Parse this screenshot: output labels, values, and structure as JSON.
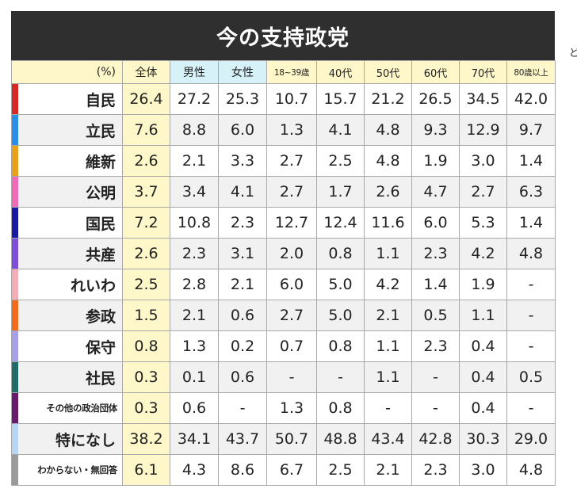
{
  "title": "今の支持政党",
  "stray_char": "ど",
  "header": {
    "unit": "(%)",
    "columns": [
      "全体",
      "男性",
      "女性",
      "18~39歳",
      "40代",
      "50代",
      "60代",
      "70代",
      "80歳以上"
    ]
  },
  "rows": [
    {
      "party": "自民",
      "color": "#d62a25",
      "values": [
        "26.4",
        "27.2",
        "25.3",
        "10.7",
        "15.7",
        "21.2",
        "26.5",
        "34.5",
        "42.0"
      ]
    },
    {
      "party": "立民",
      "color": "#2a8de8",
      "values": [
        "7.6",
        "8.8",
        "6.0",
        "1.3",
        "4.1",
        "4.8",
        "9.3",
        "12.9",
        "9.7"
      ]
    },
    {
      "party": "維新",
      "color": "#e8a21a",
      "values": [
        "2.6",
        "2.1",
        "3.3",
        "2.7",
        "2.5",
        "4.8",
        "1.9",
        "3.0",
        "1.4"
      ]
    },
    {
      "party": "公明",
      "color": "#f06bb5",
      "values": [
        "3.7",
        "3.4",
        "4.1",
        "2.7",
        "1.7",
        "2.6",
        "4.7",
        "2.7",
        "6.3"
      ]
    },
    {
      "party": "国民",
      "color": "#1a1aa0",
      "values": [
        "7.2",
        "10.8",
        "2.3",
        "12.7",
        "12.4",
        "11.6",
        "6.0",
        "5.3",
        "1.4"
      ]
    },
    {
      "party": "共産",
      "color": "#7b4fd9",
      "values": [
        "2.6",
        "2.3",
        "3.1",
        "2.0",
        "0.8",
        "1.1",
        "2.3",
        "4.2",
        "4.8"
      ]
    },
    {
      "party": "れいわ",
      "color": "#f2aeb4",
      "values": [
        "2.5",
        "2.8",
        "2.1",
        "6.0",
        "5.0",
        "4.2",
        "1.4",
        "1.9",
        "-"
      ]
    },
    {
      "party": "参政",
      "color": "#f26a1b",
      "values": [
        "1.5",
        "2.1",
        "0.6",
        "2.7",
        "5.0",
        "2.1",
        "0.5",
        "1.1",
        "-"
      ]
    },
    {
      "party": "保守",
      "color": "#a79fe8",
      "values": [
        "0.8",
        "1.3",
        "0.2",
        "0.7",
        "0.8",
        "1.1",
        "2.3",
        "0.4",
        "-"
      ]
    },
    {
      "party": "社民",
      "color": "#1f6b66",
      "values": [
        "0.3",
        "0.1",
        "0.6",
        "-",
        "-",
        "1.1",
        "-",
        "0.4",
        "0.5"
      ]
    },
    {
      "party": "その他の政治団体",
      "color": "#6a1a6a",
      "small": true,
      "values": [
        "0.3",
        "0.6",
        "-",
        "1.3",
        "0.8",
        "-",
        "-",
        "0.4",
        "-"
      ]
    },
    {
      "party": "特になし",
      "color": "#b8d6f2",
      "values": [
        "38.2",
        "34.1",
        "43.7",
        "50.7",
        "48.8",
        "43.4",
        "42.8",
        "30.3",
        "29.0"
      ]
    },
    {
      "party": "わからない・無回答",
      "color": "#9a9a9a",
      "small": true,
      "values": [
        "6.1",
        "4.3",
        "8.6",
        "6.7",
        "2.5",
        "2.1",
        "2.3",
        "3.0",
        "4.8"
      ]
    }
  ]
}
